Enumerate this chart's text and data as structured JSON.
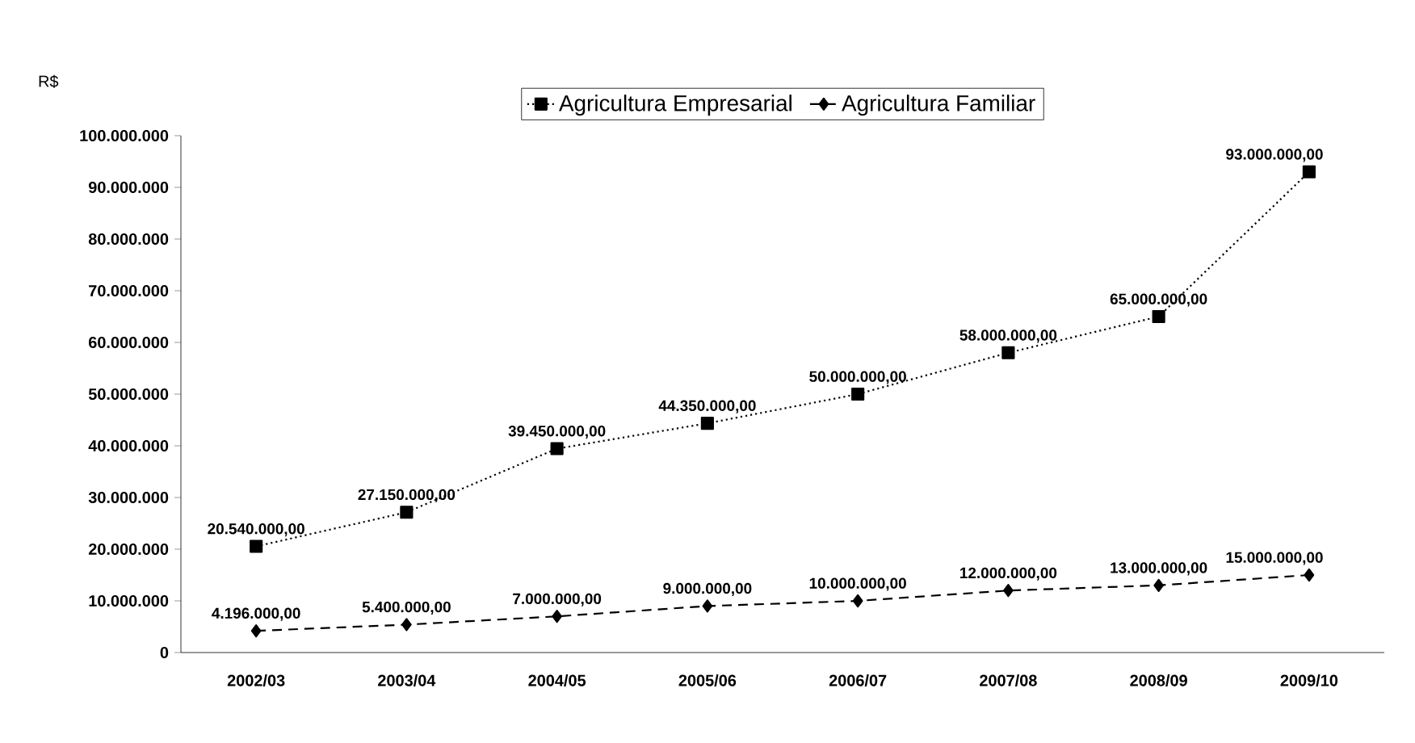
{
  "chart_data": {
    "type": "line",
    "ylabel": "R$",
    "categories": [
      "2002/03",
      "2003/04",
      "2004/05",
      "2005/06",
      "2006/07",
      "2007/08",
      "2008/09",
      "2009/10"
    ],
    "series": [
      {
        "name": "Agricultura Empresarial",
        "color": "#000000",
        "marker": "square",
        "line_style": "dotted",
        "values": [
          20540000,
          27150000,
          39450000,
          44350000,
          50000000,
          58000000,
          65000000,
          93000000
        ],
        "value_labels": [
          "20.540.000,00",
          "27.150.000,00",
          "39.450.000,00",
          "44.350.000,00",
          "50.000.000,00",
          "58.000.000,00",
          "65.000.000,00",
          "93.000.000,00"
        ]
      },
      {
        "name": "Agricultura Familiar",
        "color": "#000000",
        "marker": "diamond",
        "line_style": "dashed",
        "values": [
          4196000,
          5400000,
          7000000,
          9000000,
          10000000,
          12000000,
          13000000,
          15000000
        ],
        "value_labels": [
          "4.196.000,00",
          "5.400.000,00",
          "7.000.000,00",
          "9.000.000,00",
          "10.000.000,00",
          "12.000.000,00",
          "13.000.000,00",
          "15.000.000,00"
        ]
      }
    ],
    "ylim": [
      0,
      100000000
    ],
    "yticks": [
      {
        "value": 0,
        "label": "0"
      },
      {
        "value": 10000000,
        "label": "10.000.000"
      },
      {
        "value": 20000000,
        "label": "20.000.000"
      },
      {
        "value": 30000000,
        "label": "30.000.000"
      },
      {
        "value": 40000000,
        "label": "40.000.000"
      },
      {
        "value": 50000000,
        "label": "50.000.000"
      },
      {
        "value": 60000000,
        "label": "60.000.000"
      },
      {
        "value": 70000000,
        "label": "70.000.000"
      },
      {
        "value": 80000000,
        "label": "80.000.000"
      },
      {
        "value": 90000000,
        "label": "90.000.000"
      },
      {
        "value": 100000000,
        "label": "100.000.000"
      }
    ],
    "grid": false,
    "legend": "top"
  }
}
